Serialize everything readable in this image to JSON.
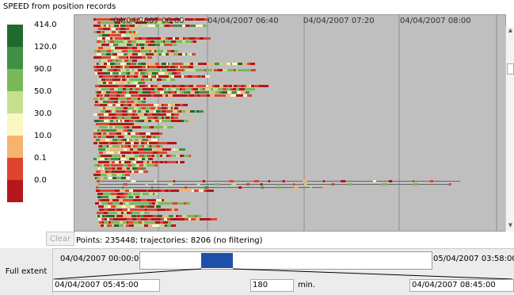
{
  "title": "SPEED from position records",
  "legend": {
    "labels": [
      "414.0",
      "120.0",
      "90.0",
      "50.0",
      "30.0",
      "10.0",
      "0.1",
      "0.0"
    ],
    "colors": [
      "#1f6b2d",
      "#3f8f44",
      "#7ab956",
      "#c4df8e",
      "#fbf6c5",
      "#f6b36e",
      "#de4530",
      "#b3161c"
    ]
  },
  "time_axis": {
    "ticks": [
      "04/04/2007 06:00",
      "04/04/2007 06:40",
      "04/04/2007 07:20",
      "04/04/2007 08:00"
    ]
  },
  "clear_label": "Clear",
  "status": "Points: 235448; trajectories: 8206 (no filtering)",
  "full_extent_label": "Full extent",
  "extent": {
    "start": "04/04/2007 00:00:00",
    "end": "05/04/2007 03:58:00"
  },
  "window": {
    "from": "04/04/2007 05:45:00",
    "duration": "180",
    "unit": "min.",
    "to": "04/04/2007 08:45:00"
  },
  "colors": {
    "plot_bg": "#bfbfbf",
    "slider_thumb": "#1f4fa8",
    "grid": "#8c8c8c"
  }
}
